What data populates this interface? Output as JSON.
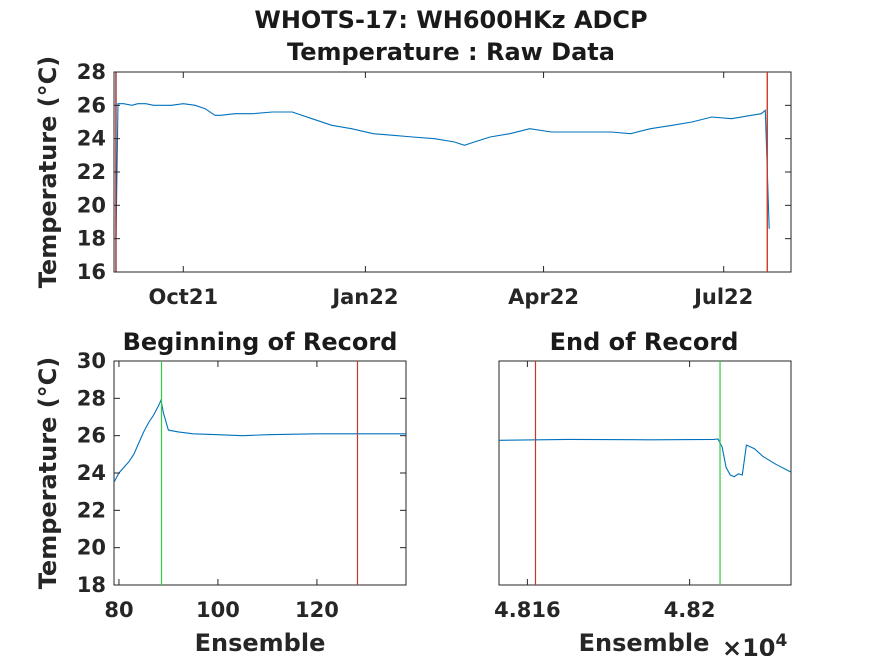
{
  "figure": {
    "title_line1": "WHOTS-17: WH600HKz ADCP",
    "title_line2": "Temperature : Raw Data"
  },
  "chart_data": [
    {
      "type": "line",
      "id": "top",
      "title": "",
      "xlabel": "",
      "ylabel": "Temperature (°C)",
      "x_is_date": true,
      "xlim": [
        "2021-08-27",
        "2022-08-04"
      ],
      "ylim": [
        16,
        28
      ],
      "yticks": [
        16,
        18,
        20,
        22,
        24,
        26,
        28
      ],
      "xticks": [
        {
          "date": "2021-10-01",
          "label": "Oct21"
        },
        {
          "date": "2022-01-01",
          "label": "Jan22"
        },
        {
          "date": "2022-04-01",
          "label": "Apr22"
        },
        {
          "date": "2022-07-01",
          "label": "Jul22"
        }
      ],
      "grid": false,
      "series": [
        {
          "color": "#0072bd",
          "x": [
            "2021-08-28",
            "2021-08-29",
            "2021-09-01",
            "2021-09-05",
            "2021-09-08",
            "2021-09-12",
            "2021-09-16",
            "2021-09-20",
            "2021-09-25",
            "2021-10-01",
            "2021-10-07",
            "2021-10-12",
            "2021-10-17",
            "2021-10-20",
            "2021-10-27",
            "2021-11-05",
            "2021-11-15",
            "2021-11-25",
            "2021-12-05",
            "2021-12-15",
            "2021-12-25",
            "2022-01-05",
            "2022-01-15",
            "2022-01-25",
            "2022-02-05",
            "2022-02-15",
            "2022-02-20",
            "2022-02-25",
            "2022-03-05",
            "2022-03-15",
            "2022-03-25",
            "2022-04-05",
            "2022-04-15",
            "2022-04-25",
            "2022-05-05",
            "2022-05-15",
            "2022-05-25",
            "2022-06-05",
            "2022-06-15",
            "2022-06-25",
            "2022-07-05",
            "2022-07-15",
            "2022-07-20",
            "2022-07-22",
            "2022-07-24"
          ],
          "y": [
            18.1,
            26.1,
            26.1,
            26.0,
            26.1,
            26.1,
            26.0,
            26.0,
            26.0,
            26.1,
            26.0,
            25.8,
            25.4,
            25.4,
            25.5,
            25.5,
            25.6,
            25.6,
            25.2,
            24.8,
            24.6,
            24.3,
            24.2,
            24.1,
            24.0,
            23.8,
            23.6,
            23.8,
            24.1,
            24.3,
            24.6,
            24.4,
            24.4,
            24.4,
            24.4,
            24.3,
            24.6,
            24.8,
            25.0,
            25.3,
            25.2,
            25.4,
            25.5,
            25.7,
            18.6
          ]
        }
      ],
      "vlines": [
        {
          "date": "2021-08-28",
          "color": "#77ac30"
        },
        {
          "date": "2021-08-28",
          "color": "#a2142f"
        },
        {
          "date": "2022-07-23",
          "color": "#77ac30"
        },
        {
          "date": "2022-07-23",
          "color": "#d62728"
        }
      ]
    },
    {
      "type": "line",
      "id": "begin",
      "title": "Beginning of Record",
      "xlabel": "Ensemble",
      "ylabel": "Temperature (°C)",
      "xlim": [
        79,
        138
      ],
      "ylim": [
        18,
        30
      ],
      "xticks": [
        80,
        100,
        120
      ],
      "yticks": [
        18,
        20,
        22,
        24,
        26,
        28,
        30
      ],
      "grid": false,
      "series": [
        {
          "color": "#0072bd",
          "x": [
            79,
            80,
            81,
            82,
            83,
            84,
            85,
            86,
            87,
            88,
            88.5,
            89,
            90,
            92,
            95,
            100,
            105,
            110,
            120,
            130,
            138
          ],
          "y": [
            23.5,
            24.0,
            24.3,
            24.6,
            25.0,
            25.6,
            26.2,
            26.7,
            27.1,
            27.6,
            27.9,
            27.2,
            26.3,
            26.2,
            26.1,
            26.05,
            26.0,
            26.05,
            26.1,
            26.1,
            26.1
          ]
        }
      ],
      "vlines": [
        {
          "x": 88.6,
          "color": "#2ecc40"
        },
        {
          "x": 128.2,
          "color": "#c0392b"
        }
      ]
    },
    {
      "type": "line",
      "id": "end",
      "title": "End of Record",
      "xlabel": "Ensemble",
      "ylabel": "",
      "xlim": [
        48153,
        48225
      ],
      "ylim": [
        18,
        30
      ],
      "xticks": [
        {
          "value": 48160,
          "label": "4.816"
        },
        {
          "value": 48200,
          "label": "4.82"
        }
      ],
      "exponent": "×10",
      "exponent_power": "4",
      "grid": false,
      "series": [
        {
          "color": "#0072bd",
          "x": [
            48153,
            48170,
            48190,
            48206,
            48207,
            48208,
            48209,
            48210,
            48211,
            48212,
            48213,
            48214,
            48216,
            48218,
            48221,
            48225
          ],
          "y": [
            25.75,
            25.8,
            25.78,
            25.8,
            25.82,
            25.4,
            24.3,
            23.9,
            23.8,
            23.95,
            23.9,
            25.5,
            25.3,
            24.9,
            24.5,
            24.05
          ]
        }
      ],
      "vlines": [
        {
          "x": 48162,
          "color": "#c0392b"
        },
        {
          "x": 48207.5,
          "color": "#2ecc40"
        }
      ]
    }
  ]
}
